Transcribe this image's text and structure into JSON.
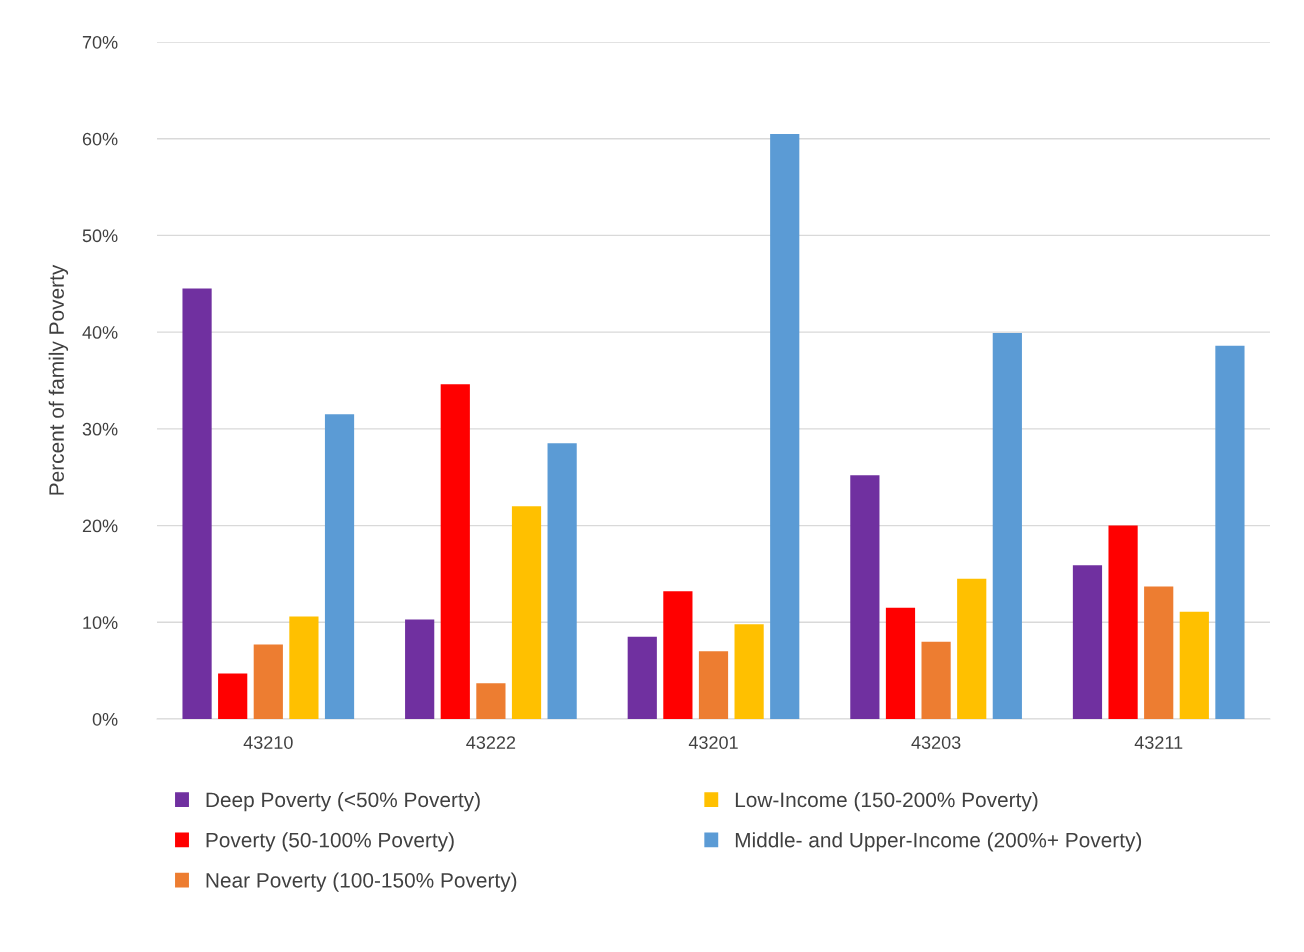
{
  "chart_data": {
    "type": "bar",
    "ylabel": "Percent of family Poverty",
    "categories": [
      "43210",
      "43222",
      "43201",
      "43203",
      "43211"
    ],
    "series": [
      {
        "name": "Deep Poverty (<50% Poverty)",
        "color": "#7030a0",
        "values": [
          44.5,
          10.3,
          8.5,
          25.2,
          15.9
        ]
      },
      {
        "name": "Poverty (50-100% Poverty)",
        "color": "#ff0000",
        "values": [
          4.7,
          34.6,
          13.2,
          11.5,
          20.0
        ]
      },
      {
        "name": "Near Poverty (100-150% Poverty)",
        "color": "#ed7d31",
        "values": [
          7.7,
          3.7,
          7.0,
          8.0,
          13.7
        ]
      },
      {
        "name": "Low-Income (150-200% Poverty)",
        "color": "#ffc000",
        "values": [
          10.6,
          22.0,
          9.8,
          14.5,
          11.1
        ]
      },
      {
        "name": "Middle- and Upper-Income (200%+ Poverty)",
        "color": "#5b9bd5",
        "values": [
          31.5,
          28.5,
          60.5,
          39.9,
          38.6
        ]
      }
    ],
    "ylim": [
      0,
      70
    ],
    "yticks": [
      {
        "value": 0,
        "label": "0%"
      },
      {
        "value": 10,
        "label": "10%"
      },
      {
        "value": 20,
        "label": "20%"
      },
      {
        "value": 30,
        "label": "30%"
      },
      {
        "value": 40,
        "label": "40%"
      },
      {
        "value": 50,
        "label": "50%"
      },
      {
        "value": 60,
        "label": "60%"
      },
      {
        "value": 70,
        "label": "70%"
      }
    ],
    "grid": "y",
    "legend": "bottom"
  }
}
